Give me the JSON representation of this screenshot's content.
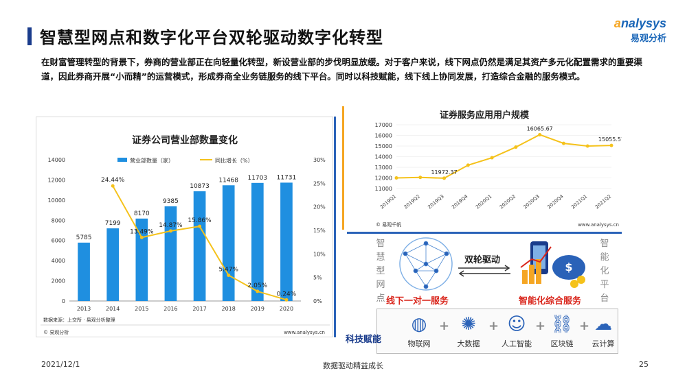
{
  "header": {
    "title": "智慧型网点和数字化平台双轮驱动数字化转型",
    "logo_en": "nalysys",
    "logo_cn": "易观分析"
  },
  "intro": "在财富管理转型的背景下，券商的营业部正在向轻量化转型，新设营业部的步伐明显放缓。对于客户来说，线下网点仍然是满足其资产多元化配置需求的重要渠道，因此券商开展“小而精”的运营模式，形成券商全业务链服务的线下平台。同时以科技赋能，线下线上协同发展，打造综合金融的服务模式。",
  "chart_data": [
    {
      "type": "bar",
      "title": "证券公司营业部数量变化",
      "categories": [
        "2013",
        "2014",
        "2015",
        "2016",
        "2017",
        "2018",
        "2019",
        "2020"
      ],
      "series": [
        {
          "name": "营业部数量（家）",
          "values": [
            5785,
            7199,
            8170,
            9385,
            10873,
            11468,
            11703,
            11731
          ],
          "color": "#1f8fe0"
        },
        {
          "name": "同比增长（%）",
          "values": [
            null,
            24.44,
            13.49,
            14.87,
            15.86,
            5.47,
            2.05,
            0.24
          ],
          "labels": [
            "",
            "24.44%",
            "13.49%",
            "14.87%",
            "15.86%",
            "5.47%",
            "2.05%",
            "0.24%"
          ],
          "color": "#f5c21b",
          "type": "line",
          "axis": "right"
        }
      ],
      "ylim": [
        0,
        14000
      ],
      "yticks": [
        "0",
        "2000",
        "4000",
        "6000",
        "8000",
        "10000",
        "12000",
        "14000"
      ],
      "y2lim": [
        0,
        30
      ],
      "y2ticks": [
        "0%",
        "5%",
        "10%",
        "15%",
        "20%",
        "25%",
        "30%"
      ],
      "source": "数据来源：上交所 · 易观分析整理",
      "footer_left": "© 易观分析",
      "footer_right": "www.analysys.cn"
    },
    {
      "type": "line",
      "title": "证券服务应用用户规模",
      "categories": [
        "2019Q1",
        "2019Q2",
        "2019Q3",
        "2019Q4",
        "2020Q1",
        "2020Q2",
        "2020Q3",
        "2020Q4",
        "2021Q1",
        "2021Q2"
      ],
      "values": [
        12000,
        12050,
        11972.37,
        13200,
        13900,
        14900,
        16065.67,
        15250,
        15000,
        15055.57
      ],
      "labels": [
        "",
        "",
        "11972.37",
        "",
        "",
        "",
        "16065.67",
        "",
        "",
        "15055.57"
      ],
      "color": "#f5c21b",
      "ylim": [
        11000,
        17000
      ],
      "yticks": [
        "11000",
        "12000",
        "13000",
        "14000",
        "15000",
        "16000",
        "17000"
      ],
      "footer_left": "© 易观千帆",
      "footer_right": "www.analysys.cn"
    }
  ],
  "diagram": {
    "left_vertical": "智慧型网点",
    "right_vertical": "智能化平台",
    "center_label": "双轮驱动",
    "left_caption": "线下一对一服务",
    "right_caption": "智能化综合服务",
    "tech_label": "科技赋能",
    "tech_items": [
      {
        "label": "物联网",
        "icon": "globe-icon"
      },
      {
        "label": "大数据",
        "icon": "network-icon"
      },
      {
        "label": "人工智能",
        "icon": "ai-head-icon"
      },
      {
        "label": "区块链",
        "icon": "chain-icon"
      },
      {
        "label": "云计算",
        "icon": "cloud-icon"
      }
    ]
  },
  "footer": {
    "date": "2021/12/1",
    "center": "数据驱动精益成长",
    "page": "25"
  }
}
